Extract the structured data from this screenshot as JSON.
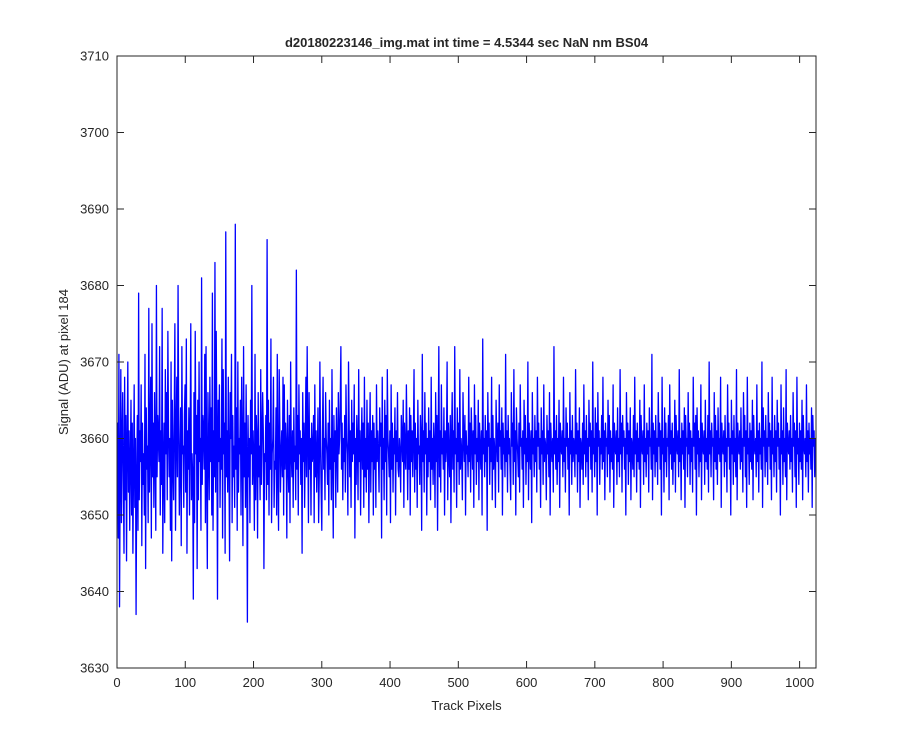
{
  "chart_data": {
    "type": "line",
    "title": "d20180223146_img.mat int time = 4.5344 sec  NaN nm BS04",
    "xlabel": "Track Pixels",
    "ylabel": "Signal (ADU) at pixel 184",
    "xlim": [
      0,
      1024
    ],
    "ylim": [
      3630,
      3710
    ],
    "xticks": [
      0,
      100,
      200,
      300,
      400,
      500,
      600,
      700,
      800,
      900,
      1000
    ],
    "yticks": [
      3630,
      3640,
      3650,
      3660,
      3670,
      3680,
      3690,
      3700,
      3710
    ],
    "grid": false,
    "legend": "none",
    "series_color": "#0000ff",
    "series": [
      {
        "values": [
          3658,
          3662,
          3647,
          3671,
          3638,
          3655,
          3669,
          3649,
          3660,
          3666,
          3654,
          3645,
          3668,
          3652,
          3663,
          3644,
          3659,
          3670,
          3653,
          3661,
          3648,
          3657,
          3665,
          3650,
          3662,
          3645,
          3656,
          3667,
          3651,
          3660,
          3637,
          3655,
          3663,
          3648,
          3679,
          3652,
          3661,
          3657,
          3667,
          3646,
          3662,
          3654,
          3658,
          3650,
          3671,
          3643,
          3664,
          3656,
          3659,
          3649,
          3677,
          3653,
          3660,
          3668,
          3647,
          3675,
          3655,
          3662,
          3651,
          3666,
          3658,
          3648,
          3680,
          3655,
          3663,
          3660,
          3657,
          3672,
          3650,
          3661,
          3654,
          3677,
          3645,
          3656,
          3662,
          3649,
          3669,
          3658,
          3666,
          3652,
          3674,
          3661,
          3655,
          3660,
          3648,
          3670,
          3644,
          3665,
          3657,
          3652,
          3663,
          3675,
          3648,
          3660,
          3668,
          3655,
          3680,
          3662,
          3650,
          3657,
          3664,
          3646,
          3672,
          3658,
          3659,
          3651,
          3663,
          3667,
          3653,
          3673,
          3645,
          3661,
          3656,
          3664,
          3650,
          3660,
          3675,
          3652,
          3658,
          3655,
          3639,
          3666,
          3649,
          3674,
          3658,
          3663,
          3643,
          3665,
          3652,
          3670,
          3657,
          3660,
          3648,
          3681,
          3654,
          3663,
          3661,
          3656,
          3671,
          3649,
          3672,
          3655,
          3643,
          3666,
          3659,
          3652,
          3668,
          3657,
          3664,
          3650,
          3679,
          3648,
          3661,
          3655,
          3683,
          3653,
          3674,
          3661,
          3639,
          3665,
          3657,
          3667,
          3651,
          3660,
          3656,
          3673,
          3647,
          3669,
          3658,
          3662,
          3645,
          3687,
          3655,
          3661,
          3653,
          3668,
          3657,
          3644,
          3666,
          3660,
          3671,
          3649,
          3663,
          3655,
          3659,
          3651,
          3688,
          3656,
          3664,
          3648,
          3670,
          3653,
          3660,
          3658,
          3665,
          3650,
          3668,
          3659,
          3646,
          3672,
          3655,
          3662,
          3651,
          3667,
          3657,
          3636,
          3663,
          3655,
          3660,
          3649,
          3665,
          3658,
          3680,
          3654,
          3661,
          3657,
          3648,
          3671,
          3652,
          3663,
          3660,
          3647,
          3666,
          3655,
          3659,
          3652,
          3669,
          3654,
          3660,
          3666,
          3661,
          3643,
          3658,
          3657,
          3663,
          3652,
          3686,
          3654,
          3665,
          3650,
          3662,
          3656,
          3673,
          3649,
          3658,
          3660,
          3668,
          3651,
          3657,
          3656,
          3664,
          3650,
          3671,
          3655,
          3648,
          3669,
          3662,
          3653,
          3658,
          3661,
          3655,
          3668,
          3650,
          3667,
          3656,
          3662,
          3659,
          3647,
          3665,
          3657,
          3653,
          3663,
          3649,
          3670,
          3658,
          3655,
          3661,
          3651,
          3664,
          3657,
          3659,
          3652,
          3682,
          3656,
          3663,
          3650,
          3667,
          3658,
          3661,
          3654,
          3660,
          3645,
          3666,
          3657,
          3662,
          3651,
          3659,
          3668,
          3655,
          3672,
          3660,
          3649,
          3666,
          3656,
          3660,
          3650,
          3662,
          3657,
          3658,
          3663,
          3649,
          3667,
          3655,
          3661,
          3653,
          3658,
          3664,
          3649,
          3655,
          3670,
          3659,
          3653,
          3648,
          3661,
          3668,
          3656,
          3660,
          3652,
          3666,
          3660,
          3658,
          3654,
          3662,
          3650,
          3665,
          3656,
          3660,
          3652,
          3669,
          3657,
          3647,
          3663,
          3657,
          3661,
          3651,
          3664,
          3659,
          3653,
          3666,
          3658,
          3660,
          3665,
          3672,
          3656,
          3662,
          3652,
          3660,
          3657,
          3663,
          3653,
          3667,
          3660,
          3658,
          3650,
          3670,
          3662,
          3655,
          3661,
          3651,
          3665,
          3657,
          3662,
          3658,
          3667,
          3647,
          3660,
          3654,
          3663,
          3659,
          3652,
          3669,
          3657,
          3661,
          3650,
          3659,
          3664,
          3656,
          3662,
          3651,
          3668,
          3655,
          3660,
          3653,
          3665,
          3656,
          3662,
          3649,
          3659,
          3666,
          3653,
          3661,
          3657,
          3663,
          3650,
          3662,
          3656,
          3660,
          3651,
          3667,
          3657,
          3661,
          3658,
          3653,
          3664,
          3659,
          3662,
          3647,
          3668,
          3656,
          3660,
          3652,
          3665,
          3657,
          3663,
          3650,
          3669,
          3660,
          3658,
          3655,
          3661,
          3649,
          3667,
          3656,
          3662,
          3653,
          3660,
          3658,
          3664,
          3650,
          3661,
          3657,
          3666,
          3656,
          3655,
          3660,
          3658,
          3653,
          3663,
          3660,
          3657,
          3665,
          3651,
          3662,
          3658,
          3656,
          3667,
          3660,
          3652,
          3661,
          3656,
          3664,
          3650,
          3663,
          3657,
          3661,
          3655,
          3660,
          3669,
          3653,
          3662,
          3656,
          3660,
          3651,
          3665,
          3658,
          3659,
          3654,
          3663,
          3660,
          3648,
          3671,
          3657,
          3661,
          3653,
          3666,
          3658,
          3662,
          3650,
          3660,
          3655,
          3664,
          3657,
          3661,
          3652,
          3668,
          3656,
          3660,
          3654,
          3662,
          3659,
          3651,
          3666,
          3657,
          3663,
          3648,
          3660,
          3672,
          3655,
          3661,
          3653,
          3667,
          3658,
          3660,
          3656,
          3664,
          3650,
          3661,
          3657,
          3659,
          3670,
          3652,
          3662,
          3658,
          3655,
          3663,
          3649,
          3660,
          3666,
          3656,
          3661,
          3653,
          3672,
          3658,
          3660,
          3651,
          3664,
          3657,
          3662,
          3654,
          3669,
          3656,
          3660,
          3658,
          3652,
          3666,
          3660,
          3657,
          3663,
          3650,
          3661,
          3658,
          3659,
          3655,
          3668,
          3657,
          3662,
          3653,
          3664,
          3660,
          3656,
          3661,
          3651,
          3667,
          3658,
          3663,
          3654,
          3660,
          3657,
          3665,
          3652,
          3662,
          3659,
          3656,
          3661,
          3650,
          3673,
          3658,
          3660,
          3655,
          3663,
          3657,
          3661,
          3648,
          3666,
          3659,
          3662,
          3654,
          3660,
          3657,
          3668,
          3652,
          3663,
          3656,
          3660,
          3658,
          3651,
          3665,
          3660,
          3657,
          3662,
          3653,
          3667,
          3659,
          3661,
          3656,
          3664,
          3650,
          3662,
          3658,
          3660,
          3655,
          3671,
          3657,
          3661,
          3653,
          3663,
          3658,
          3660,
          3656,
          3652,
          3666,
          3659,
          3662,
          3654,
          3669,
          3657,
          3661,
          3650,
          3664,
          3660,
          3658,
          3655,
          3662,
          3653,
          3667,
          3659,
          3660,
          3656,
          3661,
          3651,
          3665,
          3658,
          3663,
          3654,
          3660,
          3657,
          3670,
          3652,
          3662,
          3659,
          3656,
          3661,
          3649,
          3666,
          3658,
          3660,
          3655,
          3663,
          3657,
          3661,
          3653,
          3668,
          3659,
          3662,
          3656,
          3660,
          3651,
          3664,
          3658,
          3661,
          3654,
          3667,
          3657,
          3660,
          3659,
          3652,
          3663,
          3658,
          3661,
          3655,
          3666,
          3650,
          3662,
          3659,
          3657,
          3660,
          3653,
          3672,
          3658,
          3661,
          3656,
          3663,
          3654,
          3660,
          3657,
          3665,
          3651,
          3662,
          3659,
          3658,
          3661,
          3655,
          3668,
          3657,
          3660,
          3653,
          3664,
          3659,
          3662,
          3656,
          3660,
          3650,
          3666,
          3658,
          3661,
          3654,
          3663,
          3657,
          3660,
          3659,
          3655,
          3669,
          3658,
          3662,
          3653,
          3661,
          3657,
          3664,
          3651,
          3660,
          3659,
          3656,
          3662,
          3654,
          3667,
          3658,
          3661,
          3655,
          3663,
          3657,
          3660,
          3652,
          3665,
          3659,
          3662,
          3656,
          3661,
          3653,
          3670,
          3658,
          3660,
          3655,
          3664,
          3657,
          3662,
          3650,
          3666,
          3659,
          3661,
          3654,
          3660,
          3658,
          3663,
          3656,
          3668,
          3657,
          3661,
          3652,
          3662,
          3659,
          3660,
          3655,
          3665,
          3658,
          3663,
          3653,
          3661,
          3657,
          3660,
          3656,
          3667,
          3651,
          3662,
          3659,
          3658,
          3661,
          3654,
          3664,
          3657,
          3660,
          3655,
          3669,
          3658,
          3662,
          3653,
          3663,
          3659,
          3661,
          3656,
          3660,
          3650,
          3666,
          3658,
          3662,
          3654,
          3661,
          3657,
          3664,
          3652,
          3660,
          3659,
          3656,
          3663,
          3655,
          3668,
          3658,
          3661,
          3653,
          3662,
          3657,
          3660,
          3656,
          3665,
          3651,
          3663,
          3659,
          3658,
          3661,
          3654,
          3667,
          3657,
          3660,
          3655,
          3662,
          3658,
          3661,
          3653,
          3664,
          3659,
          3660,
          3656,
          3671,
          3652,
          3662,
          3658,
          3661,
          3655,
          3663,
          3657,
          3660,
          3654,
          3666,
          3659,
          3662,
          3656,
          3661,
          3650,
          3668,
          3658,
          3660,
          3653,
          3664,
          3657,
          3662,
          3655,
          3660,
          3659,
          3663,
          3652,
          3667,
          3658,
          3661,
          3656,
          3662,
          3654,
          3660,
          3657,
          3665,
          3653,
          3663,
          3659,
          3658,
          3661,
          3655,
          3669,
          3657,
          3660,
          3652,
          3662,
          3658,
          3661,
          3656,
          3664,
          3651,
          3663,
          3659,
          3660,
          3655,
          3666,
          3658,
          3662,
          3654,
          3661,
          3657,
          3660,
          3653,
          3668,
          3659,
          3662,
          3656,
          3663,
          3650,
          3664,
          3658,
          3661,
          3655,
          3660,
          3657,
          3667,
          3652,
          3662,
          3659,
          3658,
          3661,
          3654,
          3665,
          3657,
          3660,
          3656,
          3663,
          3653,
          3670,
          3658,
          3661,
          3655,
          3662,
          3659,
          3660,
          3652,
          3666,
          3657,
          3663,
          3656,
          3661,
          3654,
          3664,
          3658,
          3660,
          3657,
          3668,
          3651,
          3662,
          3659,
          3658,
          3661,
          3655,
          3663,
          3657,
          3660,
          3653,
          3667,
          3659,
          3662,
          3656,
          3660,
          3650,
          3665,
          3658,
          3661,
          3654,
          3663,
          3657,
          3660,
          3655,
          3669,
          3652,
          3662,
          3659,
          3658,
          3661,
          3656,
          3664,
          3657,
          3660,
          3653,
          3666,
          3659,
          3663,
          3655,
          3661,
          3651,
          3668,
          3658,
          3660,
          3654,
          3662,
          3657,
          3661,
          3656,
          3665,
          3652,
          3663,
          3659,
          3658,
          3660,
          3655,
          3667,
          3657,
          3661,
          3653,
          3662,
          3658,
          3660,
          3656,
          3670,
          3651,
          3664,
          3659,
          3661,
          3655,
          3663,
          3657,
          3660,
          3654,
          3666,
          3659,
          3662,
          3656,
          3661,
          3652,
          3668,
          3658,
          3660,
          3655,
          3663,
          3657,
          3661,
          3653,
          3665,
          3659,
          3662,
          3656,
          3660,
          3650,
          3667,
          3658,
          3661,
          3654,
          3664,
          3657,
          3660,
          3655,
          3669,
          3652,
          3662,
          3659,
          3658,
          3661,
          3656,
          3663,
          3657,
          3660,
          3653,
          3666,
          3659,
          3662,
          3655,
          3661,
          3651,
          3668,
          3658,
          3660,
          3654,
          3662,
          3657,
          3661,
          3656,
          3665,
          3652,
          3663,
          3659,
          3658,
          3660,
          3655,
          3667,
          3657,
          3661,
          3653,
          3662,
          3658,
          3660,
          3656,
          3664,
          3651,
          3663,
          3659,
          3661,
          3655,
          3660,
          3657
        ]
      }
    ]
  }
}
